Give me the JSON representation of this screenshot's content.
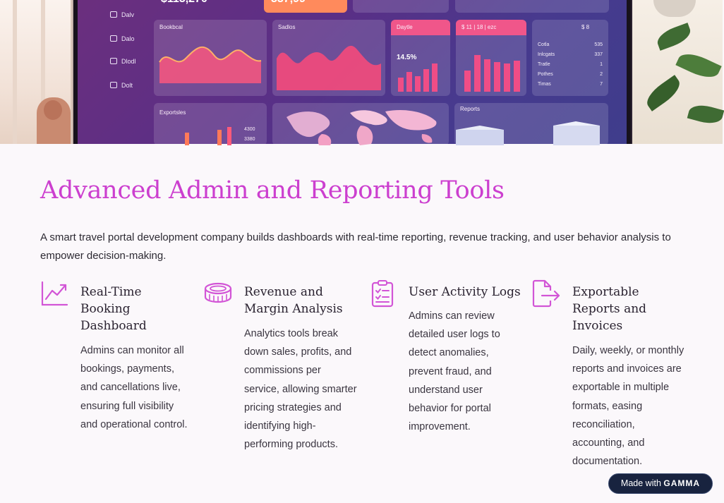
{
  "hero": {
    "kpis": [
      "$113,270",
      "337,99"
    ],
    "sidebar": [
      "Dalv",
      "Dalo",
      "Dlodl",
      "Dolt"
    ],
    "cards": {
      "bookings": "Bookbcal",
      "sales": "Sadlos",
      "daily": "Daytle",
      "daily_value": "14.5%",
      "revenue": "$ 11 | 18 | ezc",
      "table_title": "$ 8",
      "table_rows": [
        {
          "label": "Cotla",
          "value": "535"
        },
        {
          "label": "Inlcgats",
          "value": "337"
        },
        {
          "label": "Tratle",
          "value": "1"
        },
        {
          "label": "Pothes",
          "value": "2"
        },
        {
          "label": "Timas",
          "value": "7"
        }
      ],
      "exports": "Exportsles",
      "exports_values": [
        "4300",
        "3380"
      ],
      "reports": "Reports"
    }
  },
  "title": "Advanced Admin and Reporting Tools",
  "intro": "A smart travel portal development company builds dashboards with real-time reporting, revenue tracking, and user behavior analysis to empower decision-making.",
  "features": [
    {
      "icon": "chart-trend-icon",
      "title": "Real-Time Booking Dashboard",
      "desc": "Admins can monitor all bookings, payments, and cancellations live, ensuring full visibility and operational control."
    },
    {
      "icon": "coins-icon",
      "title": "Revenue and Margin Analysis",
      "desc": "Analytics tools break down sales, profits, and commissions per service, allowing smarter pricing strategies and identifying high-performing products."
    },
    {
      "icon": "clipboard-check-icon",
      "title": "User Activity Logs",
      "desc": "Admins can review detailed user logs to detect anomalies, prevent fraud, and understand user behavior for portal improvement."
    },
    {
      "icon": "file-export-icon",
      "title": "Exportable Reports and Invoices",
      "desc": "Daily, weekly, or monthly reports and invoices are exportable in multiple formats, easing reconciliation, accounting, and documentation."
    }
  ],
  "badge": {
    "prefix": "Made with",
    "brand": "GAMMA"
  },
  "colors": {
    "accent": "#cc3fcf",
    "badge_bg": "#18233f"
  }
}
